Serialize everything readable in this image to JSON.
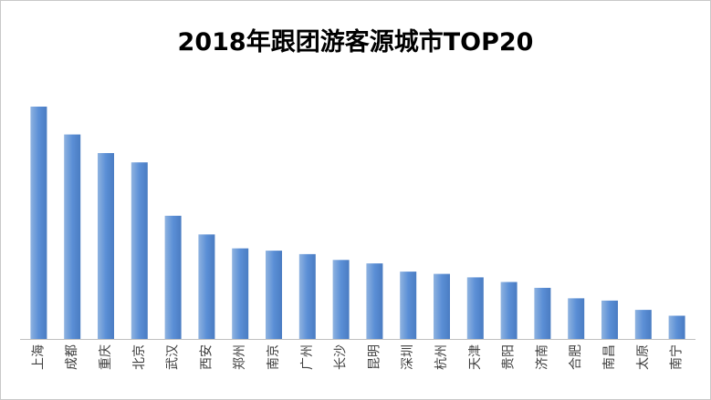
{
  "chart_data": {
    "type": "bar",
    "title": "2018年跟团游客源城市TOP20",
    "xlabel": "",
    "ylabel": "",
    "categories": [
      "上海",
      "成都",
      "重庆",
      "北京",
      "武汉",
      "西安",
      "郑州",
      "南京",
      "广州",
      "长沙",
      "昆明",
      "深圳",
      "杭州",
      "天津",
      "贵阳",
      "济南",
      "合肥",
      "南昌",
      "太原",
      "南宁"
    ],
    "values": [
      100,
      88,
      80,
      76,
      53,
      45,
      39,
      38,
      36.5,
      34,
      32.5,
      29,
      28,
      26.5,
      24.5,
      22,
      17.5,
      16.5,
      12.5,
      10
    ],
    "ylim": [
      0,
      100
    ],
    "grid": false,
    "legend": "none",
    "bar_color_light": "#8fb3e0",
    "bar_color": "#5b8fd6",
    "bar_color_dark": "#4a7cc2",
    "axis_color": "#bfbfbf"
  }
}
